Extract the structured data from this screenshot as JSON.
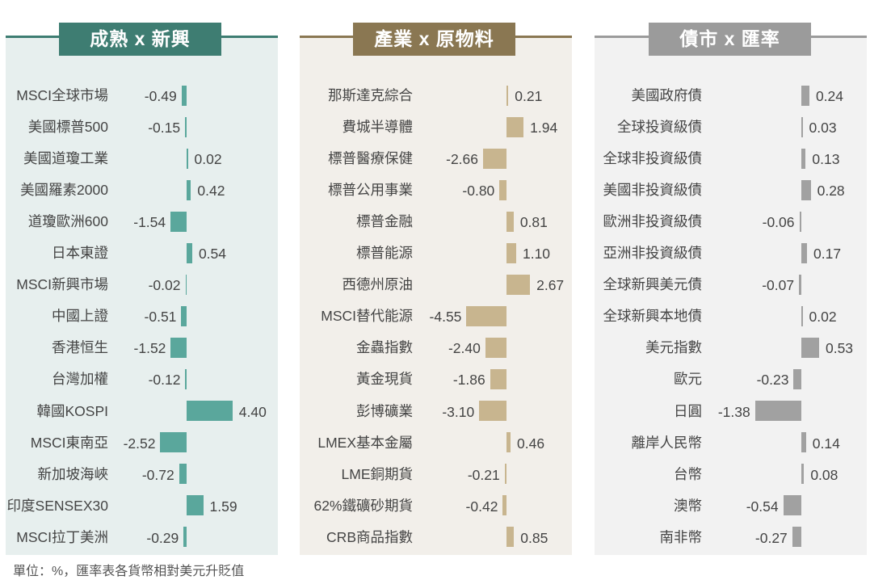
{
  "colors": {
    "mature_bg": "#e7efee",
    "mature_accent": "#3e7d72",
    "mature_bar": "#5aa79c",
    "commodity_bg": "#f2efea",
    "commodity_accent": "#8a7752",
    "commodity_bar": "#c8b58f",
    "fx_bg": "#f2f2f2",
    "fx_accent": "#9b9b9b",
    "fx_bar": "#a1a1a1"
  },
  "footnote": "單位：%，匯率表各貨幣相對美元升貶值",
  "chart_data": [
    {
      "type": "bar",
      "orientation": "horizontal",
      "title": "成熟 x 新興",
      "categories": [
        "MSCI全球市場",
        "美國標普500",
        "美國道瓊工業",
        "美國羅素2000",
        "道瓊歐洲600",
        "日本東證",
        "MSCI新興市場",
        "中國上證",
        "香港恒生",
        "台灣加權",
        "韓國KOSPI",
        "MSCI東南亞",
        "新加坡海峽",
        "印度SENSEX30",
        "MSCI拉丁美洲"
      ],
      "values": [
        -0.49,
        -0.15,
        0.02,
        0.42,
        -1.54,
        0.54,
        -0.02,
        -0.51,
        -1.52,
        -0.12,
        4.4,
        -2.52,
        -0.72,
        1.59,
        -0.29
      ],
      "labels": [
        "-0.49",
        "-0.15",
        "0.02",
        "0.42",
        "-1.54",
        "0.54",
        "-0.02",
        "-0.51",
        "-1.52",
        "-0.12",
        "4.40",
        "-2.52",
        "-0.72",
        "1.59",
        "-0.29"
      ]
    },
    {
      "type": "bar",
      "orientation": "horizontal",
      "title": "產業 x 原物料",
      "categories": [
        "那斯達克綜合",
        "費城半導體",
        "標普醫療保健",
        "標普公用事業",
        "標普金融",
        "標普能源",
        "西德州原油",
        "MSCI替代能源",
        "金蟲指數",
        "黃金現貨",
        "彭博礦業",
        "LMEX基本金屬",
        "LME銅期貨",
        "62%鐵礦砂期貨",
        "CRB商品指數"
      ],
      "values": [
        0.21,
        1.94,
        -2.66,
        -0.8,
        0.81,
        1.1,
        2.67,
        -4.55,
        -2.4,
        -1.86,
        -3.1,
        0.46,
        -0.21,
        -0.42,
        0.85
      ],
      "labels": [
        "0.21",
        "1.94",
        "-2.66",
        "-0.80",
        "0.81",
        "1.10",
        "2.67",
        "-4.55",
        "-2.40",
        "-1.86",
        "-3.10",
        "0.46",
        "-0.21",
        "-0.42",
        "0.85"
      ]
    },
    {
      "type": "bar",
      "orientation": "horizontal",
      "title": "債市 x 匯率",
      "categories": [
        "美國政府債",
        "全球投資級債",
        "全球非投資級債",
        "美國非投資級債",
        "歐洲非投資級債",
        "亞洲非投資級債",
        "全球新興美元債",
        "全球新興本地債",
        "美元指數",
        "歐元",
        "日圓",
        "離岸人民幣",
        "台幣",
        "澳幣",
        "南非幣"
      ],
      "values": [
        0.24,
        0.03,
        0.13,
        0.28,
        -0.06,
        0.17,
        -0.07,
        0.02,
        0.53,
        -0.23,
        -1.38,
        0.14,
        0.08,
        -0.54,
        -0.27
      ],
      "labels": [
        "0.24",
        "0.03",
        "0.13",
        "0.28",
        "-0.06",
        "0.17",
        "-0.07",
        "0.02",
        "0.53",
        "-0.23",
        "-1.38",
        "0.14",
        "0.08",
        "-0.54",
        "-0.27"
      ]
    }
  ]
}
